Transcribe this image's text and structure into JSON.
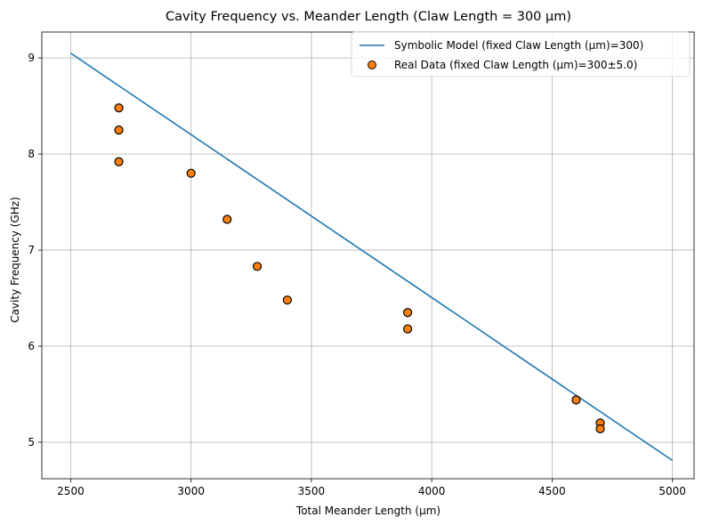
{
  "chart_data": {
    "type": "scatter",
    "title": "Cavity Frequency vs. Meander Length (Claw Length = 300 µm)",
    "xlabel": "Total Meander Length (µm)",
    "ylabel": "Cavity Frequency (GHz)",
    "xlim": [
      2380,
      5090
    ],
    "ylim": [
      4.62,
      9.27
    ],
    "xticks": [
      2500,
      3000,
      3500,
      4000,
      4500,
      5000
    ],
    "yticks": [
      5,
      6,
      7,
      8,
      9
    ],
    "grid": true,
    "legend_position": "top-right",
    "series": [
      {
        "name": "Symbolic Model (fixed Claw Length (µm)=300)",
        "kind": "line",
        "color": "#1f77b4",
        "x": [
          2500,
          5000
        ],
        "y": [
          9.05,
          4.81
        ]
      },
      {
        "name": "Real Data (fixed Claw Length (µm)=300±5.0)",
        "kind": "scatter",
        "color": "#ff7f0e",
        "edge_color": "#000000",
        "x": [
          2700,
          2700,
          2700,
          3000,
          3150,
          3275,
          3400,
          3900,
          3900,
          4600,
          4700,
          4700
        ],
        "y": [
          8.48,
          8.25,
          7.92,
          7.8,
          7.32,
          6.83,
          6.48,
          6.35,
          6.18,
          5.44,
          5.2,
          5.14
        ]
      }
    ]
  }
}
